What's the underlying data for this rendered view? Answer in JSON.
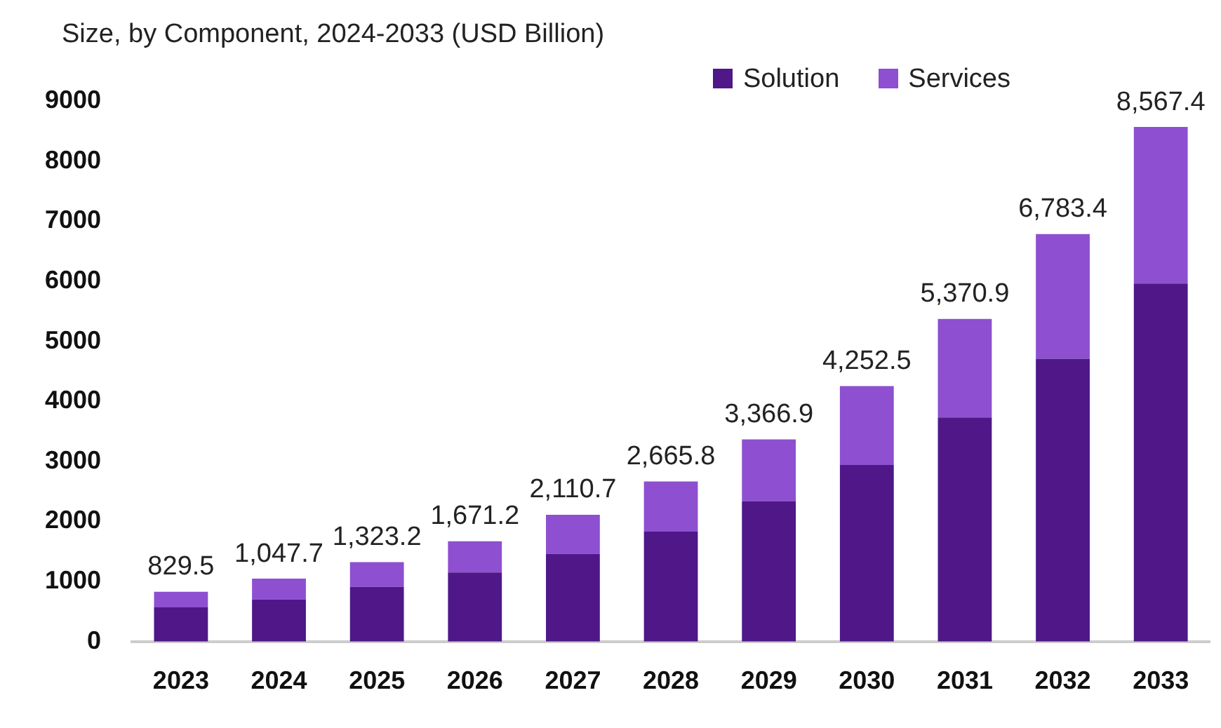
{
  "chart_data": {
    "type": "bar",
    "title": "Size, by Component, 2024-2033 (USD Billion)",
    "categories": [
      "2023",
      "2024",
      "2025",
      "2026",
      "2027",
      "2028",
      "2029",
      "2030",
      "2031",
      "2032",
      "2033"
    ],
    "series": [
      {
        "name": "Solution",
        "color": "#4f1787",
        "values": [
          570,
          700,
          910,
          1150,
          1460,
          1830,
          2340,
          2940,
          3730,
          4710,
          5960
        ]
      },
      {
        "name": "Services",
        "color": "#8e4fd0",
        "values": [
          259.5,
          347.7,
          413.2,
          521.2,
          650.7,
          835.8,
          1026.9,
          1312.5,
          1640.9,
          2073.4,
          2607.4
        ]
      }
    ],
    "stacked": true,
    "totals": [
      "829.5",
      "1,047.7",
      "1,323.2",
      "1,671.2",
      "2,110.7",
      "2,665.8",
      "3,366.9",
      "4,252.5",
      "5,370.9",
      "6,783.4",
      "8,567.4"
    ],
    "ylim": [
      0,
      9000
    ],
    "yticks": [
      0,
      1000,
      2000,
      3000,
      4000,
      5000,
      6000,
      7000,
      8000,
      9000
    ],
    "grid": false,
    "legend": "top right"
  }
}
